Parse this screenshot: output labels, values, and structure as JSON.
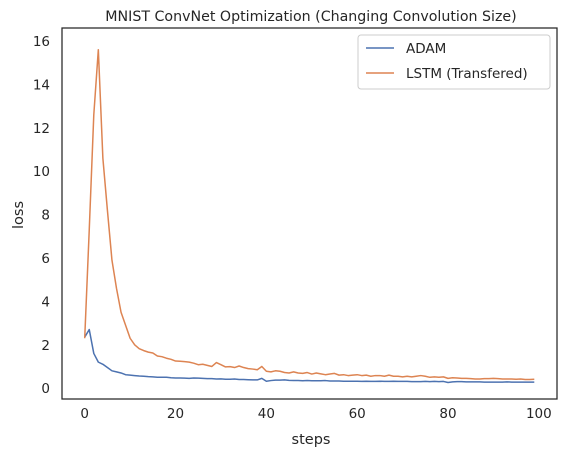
{
  "chart_data": {
    "type": "line",
    "title": "MNIST ConvNet Optimization (Changing Convolution Size)",
    "xlabel": "steps",
    "ylabel": "loss",
    "xlim": [
      -5,
      104
    ],
    "ylim": [
      -0.5,
      16.6
    ],
    "xticks": [
      0,
      20,
      40,
      60,
      80,
      100
    ],
    "yticks": [
      0,
      2,
      4,
      6,
      8,
      10,
      12,
      14,
      16
    ],
    "grid": false,
    "legend_position": "top-right",
    "series": [
      {
        "name": "ADAM",
        "color": "#4c72b0",
        "x": [
          0,
          1,
          2,
          3,
          4,
          5,
          6,
          7,
          8,
          9,
          10,
          11,
          12,
          13,
          14,
          15,
          16,
          17,
          18,
          19,
          20,
          21,
          22,
          23,
          24,
          25,
          26,
          27,
          28,
          29,
          30,
          31,
          32,
          33,
          34,
          35,
          36,
          37,
          38,
          39,
          40,
          41,
          42,
          43,
          44,
          45,
          46,
          47,
          48,
          49,
          50,
          51,
          52,
          53,
          54,
          55,
          56,
          57,
          58,
          59,
          60,
          61,
          62,
          63,
          64,
          65,
          66,
          67,
          68,
          69,
          70,
          71,
          72,
          73,
          74,
          75,
          76,
          77,
          78,
          79,
          80,
          81,
          82,
          83,
          84,
          85,
          86,
          87,
          88,
          89,
          90,
          91,
          92,
          93,
          94,
          95,
          96,
          97,
          98,
          99
        ],
        "y": [
          2.35,
          2.7,
          1.6,
          1.2,
          1.1,
          0.95,
          0.8,
          0.75,
          0.7,
          0.62,
          0.6,
          0.58,
          0.56,
          0.55,
          0.53,
          0.52,
          0.5,
          0.5,
          0.5,
          0.48,
          0.47,
          0.47,
          0.46,
          0.45,
          0.47,
          0.46,
          0.45,
          0.44,
          0.44,
          0.42,
          0.43,
          0.41,
          0.41,
          0.42,
          0.4,
          0.4,
          0.39,
          0.38,
          0.38,
          0.45,
          0.32,
          0.35,
          0.37,
          0.37,
          0.38,
          0.36,
          0.35,
          0.35,
          0.34,
          0.35,
          0.34,
          0.34,
          0.34,
          0.35,
          0.33,
          0.33,
          0.33,
          0.32,
          0.32,
          0.32,
          0.32,
          0.31,
          0.32,
          0.31,
          0.31,
          0.32,
          0.31,
          0.31,
          0.32,
          0.31,
          0.31,
          0.31,
          0.3,
          0.3,
          0.3,
          0.31,
          0.3,
          0.31,
          0.3,
          0.31,
          0.26,
          0.29,
          0.3,
          0.3,
          0.29,
          0.29,
          0.29,
          0.29,
          0.28,
          0.28,
          0.28,
          0.28,
          0.28,
          0.29,
          0.28,
          0.28,
          0.28,
          0.28,
          0.28,
          0.28
        ]
      },
      {
        "name": "LSTM (Transfered)",
        "color": "#dd8452",
        "x": [
          0,
          1,
          2,
          3,
          4,
          5,
          6,
          7,
          8,
          9,
          10,
          11,
          12,
          13,
          14,
          15,
          16,
          17,
          18,
          19,
          20,
          21,
          22,
          23,
          24,
          25,
          26,
          27,
          28,
          29,
          30,
          31,
          32,
          33,
          34,
          35,
          36,
          37,
          38,
          39,
          40,
          41,
          42,
          43,
          44,
          45,
          46,
          47,
          48,
          49,
          50,
          51,
          52,
          53,
          54,
          55,
          56,
          57,
          58,
          59,
          60,
          61,
          62,
          63,
          64,
          65,
          66,
          67,
          68,
          69,
          70,
          71,
          72,
          73,
          74,
          75,
          76,
          77,
          78,
          79,
          80,
          81,
          82,
          83,
          84,
          85,
          86,
          87,
          88,
          89,
          90,
          91,
          92,
          93,
          94,
          95,
          96,
          97,
          98,
          99
        ],
        "y": [
          2.3,
          7.3,
          12.6,
          15.6,
          10.6,
          8.2,
          5.9,
          4.6,
          3.5,
          2.9,
          2.3,
          2.0,
          1.82,
          1.73,
          1.66,
          1.62,
          1.48,
          1.45,
          1.38,
          1.33,
          1.25,
          1.24,
          1.22,
          1.2,
          1.15,
          1.08,
          1.1,
          1.05,
          1.0,
          1.18,
          1.08,
          0.98,
          0.99,
          0.95,
          1.02,
          0.95,
          0.9,
          0.88,
          0.85,
          1.0,
          0.78,
          0.75,
          0.8,
          0.78,
          0.72,
          0.7,
          0.75,
          0.7,
          0.68,
          0.72,
          0.65,
          0.7,
          0.66,
          0.62,
          0.65,
          0.68,
          0.6,
          0.62,
          0.58,
          0.6,
          0.62,
          0.58,
          0.6,
          0.55,
          0.58,
          0.58,
          0.55,
          0.6,
          0.55,
          0.55,
          0.52,
          0.55,
          0.52,
          0.55,
          0.58,
          0.55,
          0.5,
          0.52,
          0.5,
          0.52,
          0.45,
          0.48,
          0.47,
          0.45,
          0.45,
          0.44,
          0.42,
          0.42,
          0.44,
          0.44,
          0.45,
          0.44,
          0.42,
          0.42,
          0.42,
          0.41,
          0.42,
          0.4,
          0.4,
          0.41
        ]
      }
    ]
  }
}
